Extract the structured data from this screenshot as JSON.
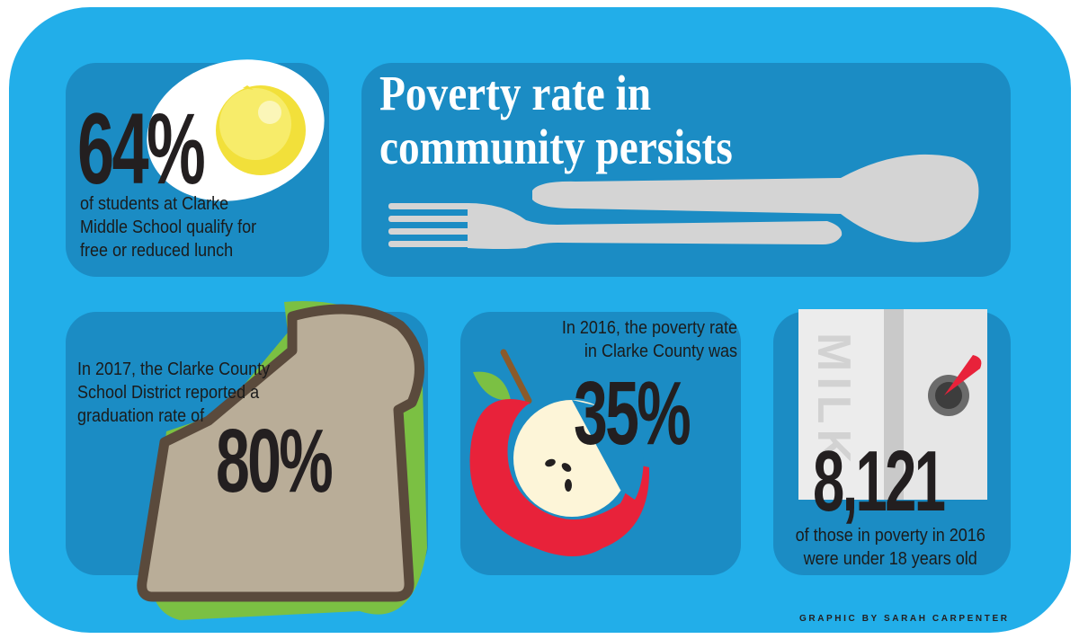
{
  "title": {
    "line1": "Poverty rate in",
    "line2": "community persists"
  },
  "lunch_stat": {
    "value": "64%",
    "caption_line1": "of students at Clarke",
    "caption_line2": "Middle School qualify for",
    "caption_line3": "free or reduced lunch"
  },
  "graduation_stat": {
    "caption_line1": "In 2017, the Clarke County",
    "caption_line2": "School District reported a",
    "caption_line3": "graduation rate of",
    "value": "80%"
  },
  "poverty_stat": {
    "caption_line1": "In 2016, the poverty rate",
    "caption_line2": "in Clarke County was",
    "value": "35%"
  },
  "youth_stat": {
    "value": "8,121",
    "caption_line1": "of those in poverty in 2016",
    "caption_line2": "were under 18 years old",
    "carton_label": "MILK"
  },
  "credit": "GRAPHIC BY SARAH CARPENTER",
  "colors": {
    "tray": "#22aee9",
    "compartment": "#1b8cc4",
    "egg_yolk": "#f2e03a",
    "apple_red": "#e8223a",
    "bread_crust": "#5a4a3c",
    "bread_crumb": "#b9ad98",
    "lettuce": "#7bc043",
    "milk_carton": "#e6e6e6"
  },
  "icons": [
    "egg-icon",
    "fork-icon",
    "spoon-icon",
    "sandwich-icon",
    "apple-icon",
    "milk-carton-icon"
  ]
}
